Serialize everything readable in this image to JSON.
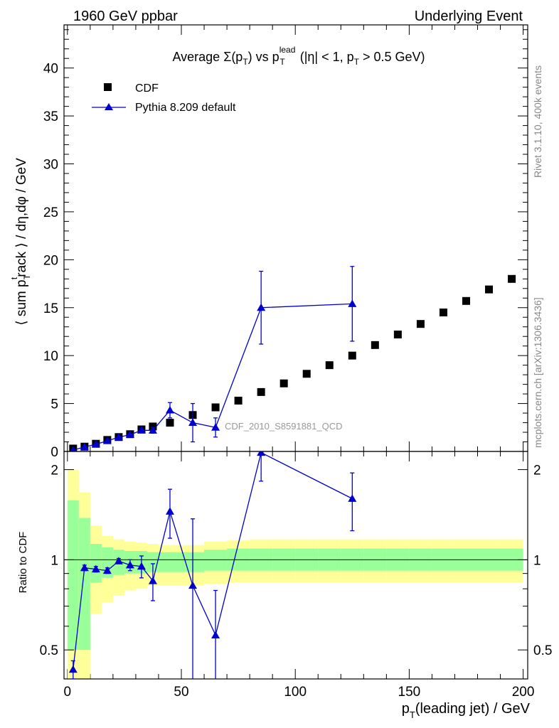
{
  "header": {
    "left": "1960 GeV ppbar",
    "right": "Underlying Event"
  },
  "side_labels": {
    "rivet": "Rivet 3.1.10,  400k events",
    "mcplots": "mcplots.cern.ch [arXiv:1306.3436]"
  },
  "watermark": "CDF_2010_S8591881_QCD",
  "chart_data": [
    {
      "type": "scatter",
      "title_parts": {
        "a": "Average ",
        "sigma": "Σ(p",
        "sub1": "T",
        "b": ") vs p",
        "sup": "lead",
        "sub2": "T",
        "c": " (|η| < 1, p",
        "sub3": "T",
        "d": " > 0.5 GeV)"
      },
      "ylabel_parts": {
        "a": "⟨ sum p",
        "sub": "T",
        "sup": "t",
        "b": "rack ⟩ / dη,dφ / GeV"
      },
      "xlim": [
        -1.5,
        202
      ],
      "ylim": [
        0,
        44.5
      ],
      "yticks": [
        0,
        5,
        10,
        15,
        20,
        25,
        30,
        35,
        40
      ],
      "legend": {
        "placement": "top-left"
      },
      "series": [
        {
          "name": "CDF",
          "marker": "square",
          "color": "#000000",
          "x": [
            2.5,
            7.5,
            12.5,
            17.5,
            22.5,
            27.5,
            32.5,
            37.5,
            45,
            55,
            65,
            75,
            85,
            95,
            105,
            115,
            125,
            135,
            145,
            155,
            165,
            175,
            185,
            195
          ],
          "y": [
            0.3,
            0.5,
            0.8,
            1.2,
            1.5,
            1.8,
            2.3,
            2.6,
            3.0,
            3.8,
            4.6,
            5.3,
            6.2,
            7.1,
            8.1,
            9.0,
            10.0,
            11.1,
            12.2,
            13.3,
            14.5,
            15.7,
            16.9,
            18.0
          ]
        },
        {
          "name": "Pythia 8.209 default",
          "marker": "triangle",
          "color": "#0000cc",
          "x": [
            2.5,
            7.5,
            12.5,
            17.5,
            22.5,
            27.5,
            32.5,
            37.5,
            45,
            55,
            65,
            85,
            125
          ],
          "y": [
            0.13,
            0.47,
            0.75,
            1.1,
            1.48,
            1.75,
            2.2,
            2.2,
            4.3,
            3.0,
            2.5,
            15.0,
            15.4
          ],
          "yerr": [
            0.05,
            0.05,
            0.06,
            0.08,
            0.1,
            0.15,
            0.25,
            0.3,
            0.8,
            2.0,
            1.0,
            3.8,
            3.9
          ]
        }
      ]
    },
    {
      "type": "scatter",
      "ylabel": "Ratio to CDF",
      "xlabel_parts": {
        "a": "p",
        "sub": "T",
        "b": "(leading jet) / GeV"
      },
      "xlim": [
        -1.5,
        202
      ],
      "ylim": [
        0.4,
        2.3
      ],
      "yscale": "log",
      "yticks": [
        0.5,
        1,
        2
      ],
      "xticks": [
        0,
        50,
        100,
        150,
        200
      ],
      "reference_line": 1,
      "bands": {
        "edges": [
          0,
          5,
          10,
          15,
          20,
          25,
          30,
          35,
          40,
          50,
          60,
          70,
          80,
          90,
          100,
          110,
          120,
          130,
          140,
          150,
          160,
          170,
          180,
          190,
          200
        ],
        "outer_lo": [
          0.3,
          0.3,
          0.66,
          0.72,
          0.76,
          0.79,
          0.8,
          0.82,
          0.82,
          0.82,
          0.83,
          0.84,
          0.84,
          0.84,
          0.84,
          0.84,
          0.84,
          0.84,
          0.84,
          0.84,
          0.84,
          0.84,
          0.84,
          0.84
        ],
        "outer_hi": [
          2.0,
          1.68,
          1.3,
          1.2,
          1.17,
          1.15,
          1.14,
          1.13,
          1.12,
          1.12,
          1.15,
          1.16,
          1.17,
          1.17,
          1.17,
          1.17,
          1.17,
          1.17,
          1.17,
          1.17,
          1.17,
          1.17,
          1.17,
          1.17
        ],
        "inner_lo": [
          0.5,
          0.5,
          0.84,
          0.87,
          0.89,
          0.9,
          0.9,
          0.91,
          0.91,
          0.91,
          0.92,
          0.92,
          0.92,
          0.92,
          0.92,
          0.92,
          0.92,
          0.92,
          0.92,
          0.92,
          0.92,
          0.92,
          0.92,
          0.92
        ],
        "inner_hi": [
          1.58,
          1.38,
          1.13,
          1.1,
          1.08,
          1.07,
          1.07,
          1.06,
          1.06,
          1.06,
          1.08,
          1.09,
          1.09,
          1.09,
          1.09,
          1.09,
          1.09,
          1.09,
          1.09,
          1.09,
          1.09,
          1.09,
          1.09,
          1.09
        ],
        "outer_color": "#ffff99",
        "inner_color": "#99ff99"
      },
      "series": [
        {
          "name": "Pythia 8.209 default",
          "marker": "triangle",
          "color": "#0000cc",
          "x": [
            2.5,
            7.5,
            12.5,
            17.5,
            22.5,
            27.5,
            32.5,
            37.5,
            45,
            55,
            65,
            85,
            125
          ],
          "y": [
            0.43,
            0.94,
            0.93,
            0.92,
            0.99,
            0.96,
            0.95,
            0.85,
            1.45,
            0.82,
            0.56,
            2.28,
            1.6
          ],
          "yerr": [
            0.03,
            0.02,
            0.02,
            0.02,
            0.02,
            0.04,
            0.08,
            0.12,
            0.27,
            0.55,
            0.23,
            0.45,
            0.35
          ]
        }
      ]
    }
  ]
}
